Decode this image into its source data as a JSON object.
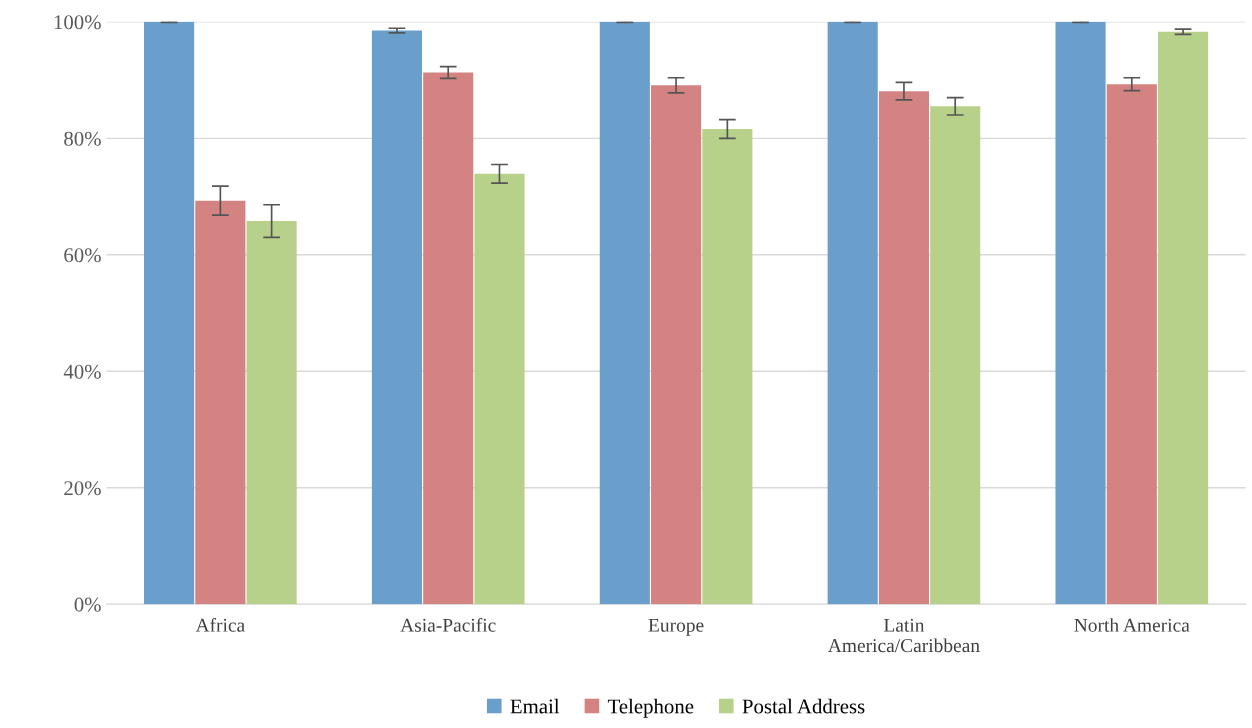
{
  "chart_data": {
    "type": "bar",
    "categories": [
      "Africa",
      "Asia-Pacific",
      "Europe",
      "Latin\nAmerica/Caribbean",
      "North America"
    ],
    "series": [
      {
        "name": "Email",
        "color": "#6a9fcc",
        "values": [
          100,
          98.5,
          100,
          100,
          100
        ],
        "errors": [
          0.1,
          0.4,
          0.1,
          0.1,
          0.1
        ]
      },
      {
        "name": "Telephone",
        "color": "#d48383",
        "values": [
          69.3,
          91.3,
          89.1,
          88.1,
          89.3
        ],
        "errors": [
          2.5,
          1.0,
          1.3,
          1.5,
          1.1
        ]
      },
      {
        "name": "Postal Address",
        "color": "#b8d18a",
        "values": [
          65.8,
          73.9,
          81.6,
          85.5,
          98.3
        ],
        "errors": [
          2.8,
          1.6,
          1.6,
          1.5,
          0.45
        ]
      }
    ],
    "ylim": [
      0,
      100
    ],
    "yticks": [
      {
        "value": 0,
        "label": "0%"
      },
      {
        "value": 20,
        "label": "20%"
      },
      {
        "value": 40,
        "label": "40%"
      },
      {
        "value": 60,
        "label": "60%"
      },
      {
        "value": 80,
        "label": "80%"
      },
      {
        "value": 100,
        "label": "100%"
      }
    ],
    "grid": "y",
    "legend": "bottom"
  }
}
